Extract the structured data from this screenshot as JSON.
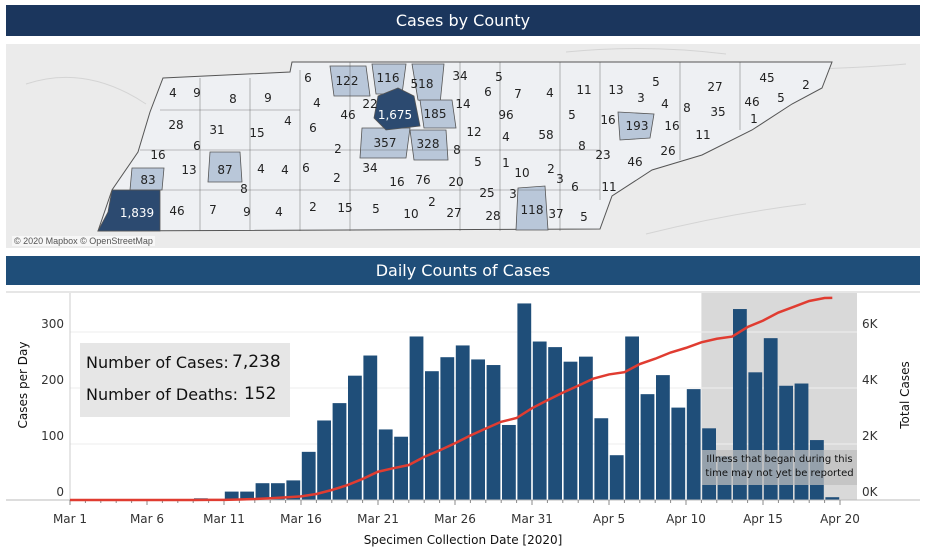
{
  "map_panel": {
    "title": "Cases by County",
    "attribution": "© 2020 Mapbox © OpenStreetMap",
    "county_counts": [
      "4",
      "9",
      "8",
      "9",
      "6",
      "122",
      "116",
      "518",
      "34",
      "5",
      "6",
      "7",
      "4",
      "11",
      "13",
      "5",
      "3",
      "4",
      "8",
      "27",
      "45",
      "2",
      "46",
      "5",
      "1",
      "35",
      "4",
      "46",
      "22",
      "1,675",
      "185",
      "14",
      "96",
      "5",
      "16",
      "193",
      "16",
      "11",
      "28",
      "31",
      "15",
      "4",
      "6",
      "357",
      "328",
      "12",
      "4",
      "58",
      "16",
      "6",
      "2",
      "8",
      "5",
      "1",
      "8",
      "23",
      "46",
      "26",
      "13",
      "87",
      "4",
      "4",
      "6",
      "34",
      "2",
      "16",
      "76",
      "20",
      "10",
      "2",
      "3",
      "6",
      "11",
      "83",
      "8",
      "25",
      "3",
      "1,839",
      "46",
      "7",
      "9",
      "4",
      "2",
      "15",
      "5",
      "10",
      "2",
      "27",
      "28",
      "118",
      "37",
      "5"
    ],
    "colors": {
      "high": "#2c4a70",
      "mid": "#b9c7d9",
      "low": "#eef0f3",
      "border": "#555555",
      "background": "#ebebeb"
    }
  },
  "chart_panel": {
    "title": "Daily Counts of Cases",
    "stats": {
      "cases_label": "Number of Cases:",
      "cases_value": "7,238",
      "deaths_label": "Number of Deaths:",
      "deaths_value": "152"
    },
    "annotation": "Illness that began during this time may not yet be reported"
  },
  "chart_data": {
    "type": "bar",
    "xlabel": "Specimen Collection Date [2020]",
    "ylabel": "Cases per Day",
    "ylabel_right": "Total Cases",
    "ylim": [
      0,
      360
    ],
    "ylim_right": [
      0,
      7200
    ],
    "yticks": [
      "0",
      "100",
      "200",
      "300"
    ],
    "yticks_right": [
      "0K",
      "2K",
      "4K",
      "6K"
    ],
    "xticks": [
      "Mar 1",
      "Mar 6",
      "Mar 11",
      "Mar 16",
      "Mar 21",
      "Mar 26",
      "Mar 31",
      "Apr 5",
      "Apr 10",
      "Apr 15",
      "Apr 20"
    ],
    "dates": [
      "Mar 1",
      "Mar 2",
      "Mar 3",
      "Mar 4",
      "Mar 5",
      "Mar 6",
      "Mar 7",
      "Mar 8",
      "Mar 9",
      "Mar 10",
      "Mar 11",
      "Mar 12",
      "Mar 13",
      "Mar 14",
      "Mar 15",
      "Mar 16",
      "Mar 17",
      "Mar 18",
      "Mar 19",
      "Mar 20",
      "Mar 21",
      "Mar 22",
      "Mar 23",
      "Mar 24",
      "Mar 25",
      "Mar 26",
      "Mar 27",
      "Mar 28",
      "Mar 29",
      "Mar 30",
      "Mar 31",
      "Apr 1",
      "Apr 2",
      "Apr 3",
      "Apr 4",
      "Apr 5",
      "Apr 6",
      "Apr 7",
      "Apr 8",
      "Apr 9",
      "Apr 10",
      "Apr 11",
      "Apr 12",
      "Apr 13",
      "Apr 14",
      "Apr 15",
      "Apr 16",
      "Apr 17",
      "Apr 18",
      "Apr 19",
      "Apr 20"
    ],
    "series": [
      {
        "type": "bar",
        "color": "#1f4e79",
        "values": [
          0,
          0,
          0,
          0,
          0,
          0,
          0,
          0,
          0,
          3,
          1,
          15,
          15,
          30,
          30,
          35,
          86,
          142,
          173,
          222,
          258,
          126,
          113,
          292,
          230,
          255,
          276,
          251,
          241,
          134,
          351,
          283,
          273,
          247,
          256,
          146,
          80,
          292,
          189,
          223,
          165,
          198,
          128,
          78,
          341,
          228,
          289,
          204,
          208,
          107,
          5
        ]
      },
      {
        "type": "line",
        "axis": "right",
        "color": "#e03c31",
        "cumulative": true
      }
    ],
    "shaded_from": "Apr 12",
    "shaded_color": "#d9d9d9",
    "grid": true
  }
}
